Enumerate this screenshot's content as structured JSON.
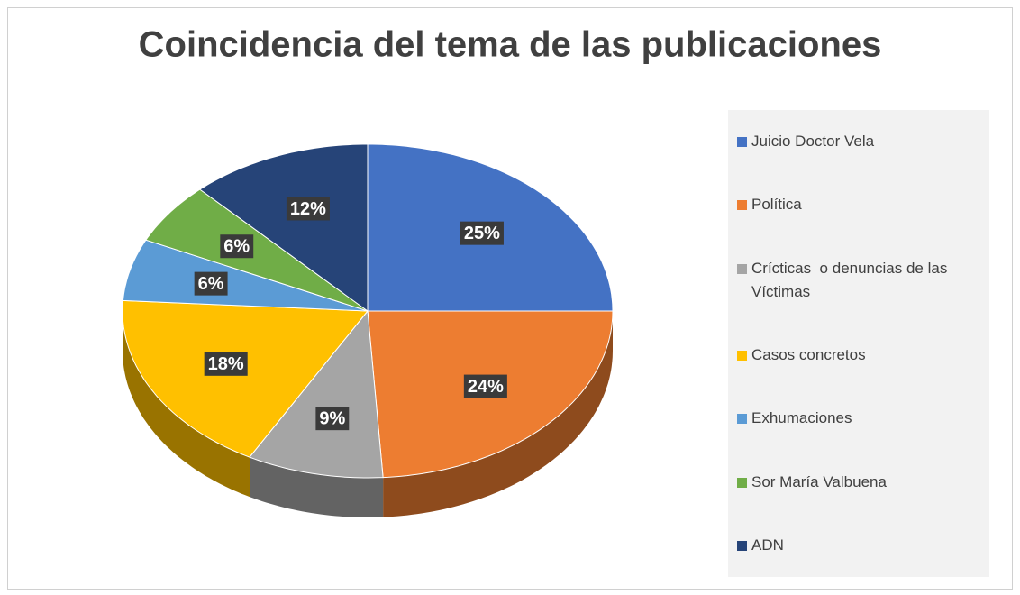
{
  "chart_data": {
    "type": "pie3d",
    "title": "Coincidencia del tema de las publicaciones",
    "categories": [
      "Juicio Doctor Vela",
      "Política",
      "Crícticas  o denuncias de las Víctimas",
      "Casos concretos",
      "Exhumaciones",
      "Sor María Valbuena",
      "ADN"
    ],
    "values": [
      25,
      24,
      9,
      18,
      6,
      6,
      12
    ],
    "value_labels": [
      "25%",
      "24%",
      "9%",
      "18%",
      "6%",
      "6%",
      "12%"
    ],
    "colors": [
      "#4472c4",
      "#ed7d31",
      "#a5a5a5",
      "#ffc000",
      "#5b9bd5",
      "#70ad47",
      "#264478"
    ],
    "legend": "right"
  }
}
